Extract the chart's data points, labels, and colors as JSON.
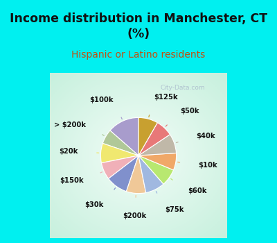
{
  "title": "Income distribution in Manchester, CT\n(%)",
  "subtitle": "Hispanic or Latino residents",
  "title_color": "#111111",
  "subtitle_color": "#c05010",
  "bg_cyan": "#00f0f0",
  "watermark": "City-Data.com",
  "labels": [
    "$100k",
    "> $200k",
    "$20k",
    "$150k",
    "$30k",
    "$200k",
    "$75k",
    "$60k",
    "$10k",
    "$40k",
    "$50k",
    "$125k"
  ],
  "values": [
    13,
    6,
    8,
    7,
    9,
    8,
    8,
    7,
    7,
    8,
    7,
    8
  ],
  "colors": [
    "#a89ccc",
    "#b0c898",
    "#f0e870",
    "#f0b0b8",
    "#8090cc",
    "#f0c898",
    "#a0b8e0",
    "#b8e870",
    "#f0a868",
    "#c0b8a8",
    "#e87878",
    "#c8a030"
  ],
  "startangle": 90,
  "figsize": [
    4.0,
    3.5
  ],
  "dpi": 100
}
